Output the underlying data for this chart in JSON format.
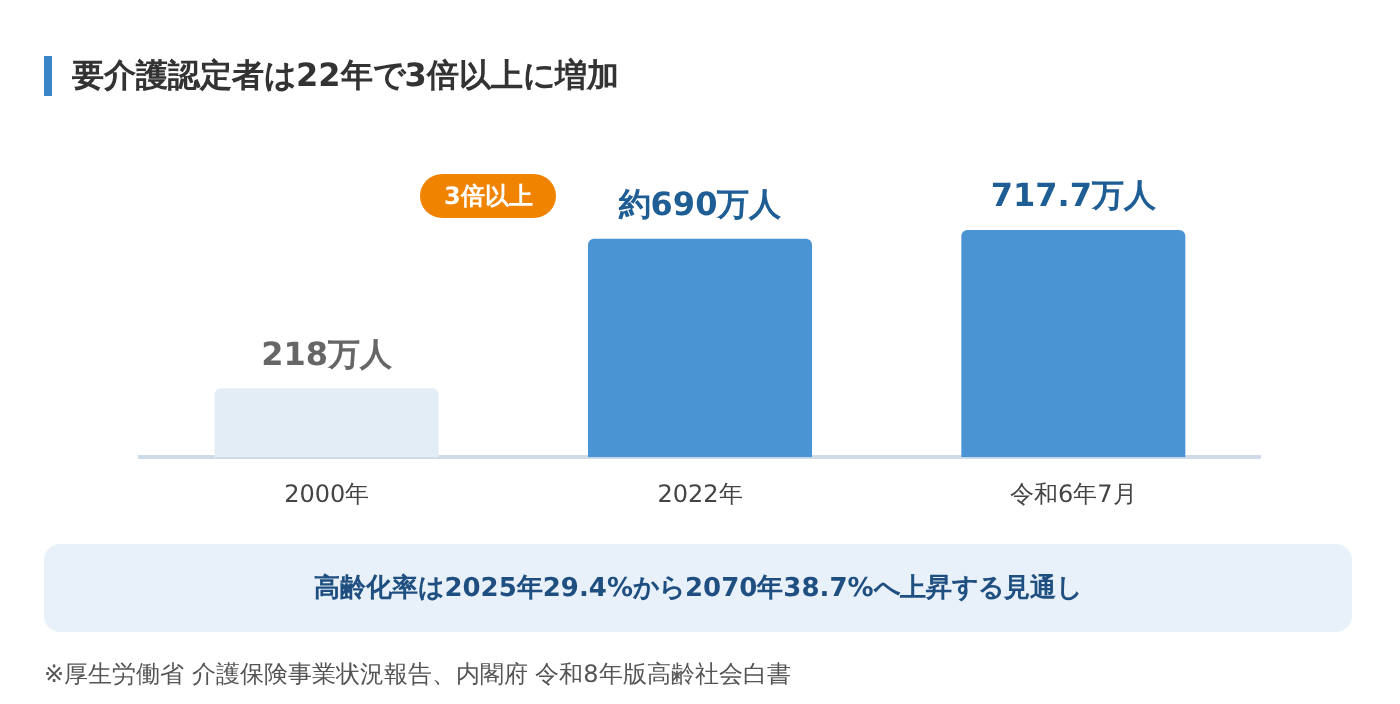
{
  "chart_data": {
    "type": "bar",
    "title": "要介護認定者は22年で3倍以上に増加",
    "categories": [
      "2000年",
      "2022年",
      "令和6年7月"
    ],
    "values": [
      218,
      690,
      717.7
    ],
    "colors": [
      "#e3edf6",
      "#4a94d4",
      "#4a94d4"
    ],
    "value_labels": [
      "218万人",
      "約690万人",
      "717.7万人"
    ],
    "annotations": [
      "3倍以上",
      "高齢化率は2025年29.4%から2070年38.7%へ上昇する見通し",
      "※厚生労働省 介護保険事業状況報告、内閣府 令和8年版高齢社会白書"
    ],
    "grid": false,
    "legend": false
  }
}
